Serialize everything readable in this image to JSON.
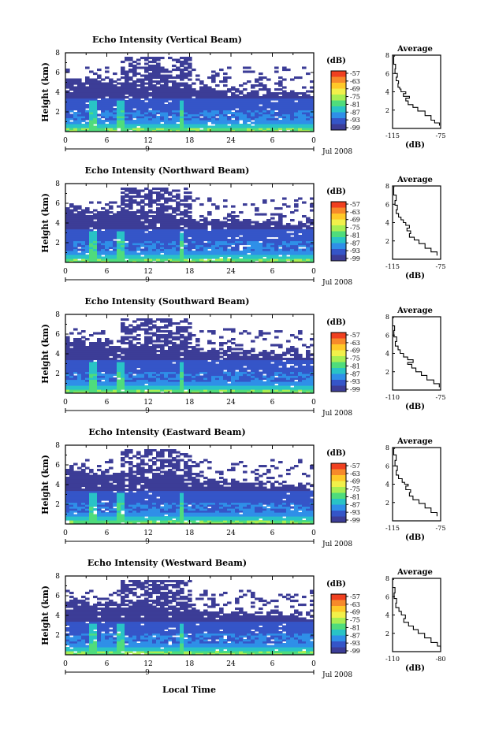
{
  "chart_data": {
    "type": "heatmap",
    "date_label": "Jul 2008",
    "day_label": "9",
    "x_axis_label": "Local Time",
    "x_ticks": [
      "0",
      "6",
      "12",
      "18",
      "24",
      "6",
      "0"
    ],
    "x_tick_values": [
      0,
      6,
      12,
      18,
      24,
      30,
      36
    ],
    "xlim": [
      0,
      36
    ],
    "ylabel": "Height (km)",
    "y_ticks": [
      "2",
      "4",
      "6",
      "8"
    ],
    "y_tick_values": [
      2,
      4,
      6,
      8
    ],
    "ylim": [
      0,
      8
    ],
    "colorbar": {
      "unit": "(dB)",
      "ticks": [
        "-57",
        "-63",
        "-69",
        "-75",
        "-81",
        "-87",
        "-93",
        "-99"
      ],
      "values": [
        -57,
        -63,
        -69,
        -75,
        -81,
        -87,
        -93,
        -99
      ],
      "colors": [
        "#f04020",
        "#f78a2a",
        "#ffc928",
        "#f2f04a",
        "#a8ee52",
        "#4fdc7c",
        "#29c3c6",
        "#2f8fe8",
        "#3555c8",
        "#3c3d97"
      ]
    },
    "panels": [
      {
        "title": "Echo Intensity (Vertical Beam)",
        "avg_title": "Average",
        "avg_xlabel": "(dB)",
        "avg_x_ticks": [
          "-115",
          "-75"
        ],
        "avg_xlim": [
          -115,
          -75
        ],
        "avg_y_ticks": [
          "2",
          "4",
          "6",
          "8"
        ],
        "avg_profile": [
          [
            -113,
            7.9
          ],
          [
            -114,
            7.0
          ],
          [
            -112.5,
            6.5
          ],
          [
            -113,
            6.0
          ],
          [
            -111,
            5.6
          ],
          [
            -112,
            5.2
          ],
          [
            -110,
            4.9
          ],
          [
            -110.5,
            4.5
          ],
          [
            -109,
            4.3
          ],
          [
            -108,
            4.0
          ],
          [
            -104,
            3.8
          ],
          [
            -106,
            3.5
          ],
          [
            -101,
            3.3
          ],
          [
            -104,
            3.0
          ],
          [
            -102,
            2.6
          ],
          [
            -98,
            2.3
          ],
          [
            -94,
            1.9
          ],
          [
            -88,
            1.4
          ],
          [
            -83,
            0.9
          ],
          [
            -80,
            0.6
          ],
          [
            -76,
            0.3
          ]
        ]
      },
      {
        "title": "Echo Intensity (Northward Beam)",
        "avg_title": "Average",
        "avg_xlabel": "(dB)",
        "avg_x_ticks": [
          "-115",
          "-75"
        ],
        "avg_xlim": [
          -115,
          -75
        ],
        "avg_y_ticks": [
          "2",
          "4",
          "6",
          "8"
        ],
        "avg_profile": [
          [
            -113.5,
            7.9
          ],
          [
            -114,
            7.0
          ],
          [
            -112,
            6.4
          ],
          [
            -113,
            5.9
          ],
          [
            -111,
            5.4
          ],
          [
            -112,
            5.0
          ],
          [
            -110,
            4.6
          ],
          [
            -108,
            4.3
          ],
          [
            -106,
            4.0
          ],
          [
            -104,
            3.7
          ],
          [
            -101,
            3.4
          ],
          [
            -103,
            3.1
          ],
          [
            -100,
            2.8
          ],
          [
            -101,
            2.4
          ],
          [
            -97,
            2.1
          ],
          [
            -93,
            1.7
          ],
          [
            -88,
            1.2
          ],
          [
            -83,
            0.8
          ],
          [
            -78,
            0.4
          ]
        ]
      },
      {
        "title": "Echo Intensity (Southward Beam)",
        "avg_title": "Average",
        "avg_xlabel": "(dB)",
        "avg_x_ticks": [
          "-110",
          "-75"
        ],
        "avg_xlim": [
          -110,
          -75
        ],
        "avg_y_ticks": [
          "2",
          "4",
          "6",
          "8"
        ],
        "avg_profile": [
          [
            -109,
            7.9
          ],
          [
            -110,
            7.0
          ],
          [
            -108.5,
            6.5
          ],
          [
            -109,
            5.8
          ],
          [
            -107,
            5.3
          ],
          [
            -108,
            4.8
          ],
          [
            -106,
            4.4
          ],
          [
            -104.5,
            4.0
          ],
          [
            -102,
            3.6
          ],
          [
            -99,
            3.3
          ],
          [
            -95,
            3.0
          ],
          [
            -99,
            2.8
          ],
          [
            -96,
            2.4
          ],
          [
            -93,
            2.0
          ],
          [
            -89,
            1.6
          ],
          [
            -85,
            1.1
          ],
          [
            -80,
            0.7
          ],
          [
            -76,
            0.3
          ]
        ]
      },
      {
        "title": "Echo Intensity (Eastward Beam)",
        "avg_title": "Average",
        "avg_xlabel": "(dB)",
        "avg_x_ticks": [
          "-115",
          "-75"
        ],
        "avg_xlim": [
          -115,
          -75
        ],
        "avg_y_ticks": [
          "2",
          "4",
          "6",
          "8"
        ],
        "avg_profile": [
          [
            -113,
            7.9
          ],
          [
            -114,
            7.2
          ],
          [
            -112,
            6.6
          ],
          [
            -113,
            6.0
          ],
          [
            -111,
            5.5
          ],
          [
            -112,
            5.0
          ],
          [
            -110,
            4.6
          ],
          [
            -107,
            4.2
          ],
          [
            -105,
            4.0
          ],
          [
            -102,
            3.8
          ],
          [
            -104,
            3.4
          ],
          [
            -100,
            3.1
          ],
          [
            -101,
            2.7
          ],
          [
            -98,
            2.3
          ],
          [
            -93,
            1.9
          ],
          [
            -88,
            1.4
          ],
          [
            -83,
            0.9
          ],
          [
            -78,
            0.5
          ]
        ]
      },
      {
        "title": "Echo Intensity (Westward Beam)",
        "avg_title": "Average",
        "avg_xlabel": "(dB)",
        "avg_x_ticks": [
          "-110",
          "-80"
        ],
        "avg_xlim": [
          -110,
          -80
        ],
        "avg_y_ticks": [
          "2",
          "4",
          "6",
          "8"
        ],
        "avg_profile": [
          [
            -109,
            7.9
          ],
          [
            -110,
            7.0
          ],
          [
            -108.5,
            6.4
          ],
          [
            -109,
            5.8
          ],
          [
            -107.5,
            5.3
          ],
          [
            -108,
            4.8
          ],
          [
            -106,
            4.4
          ],
          [
            -104.5,
            4.0
          ],
          [
            -102,
            3.6
          ],
          [
            -103,
            3.2
          ],
          [
            -100,
            2.8
          ],
          [
            -97,
            2.4
          ],
          [
            -94,
            2.0
          ],
          [
            -90,
            1.5
          ],
          [
            -86,
            1.0
          ],
          [
            -82,
            0.6
          ],
          [
            -80,
            0.3
          ]
        ]
      }
    ]
  }
}
